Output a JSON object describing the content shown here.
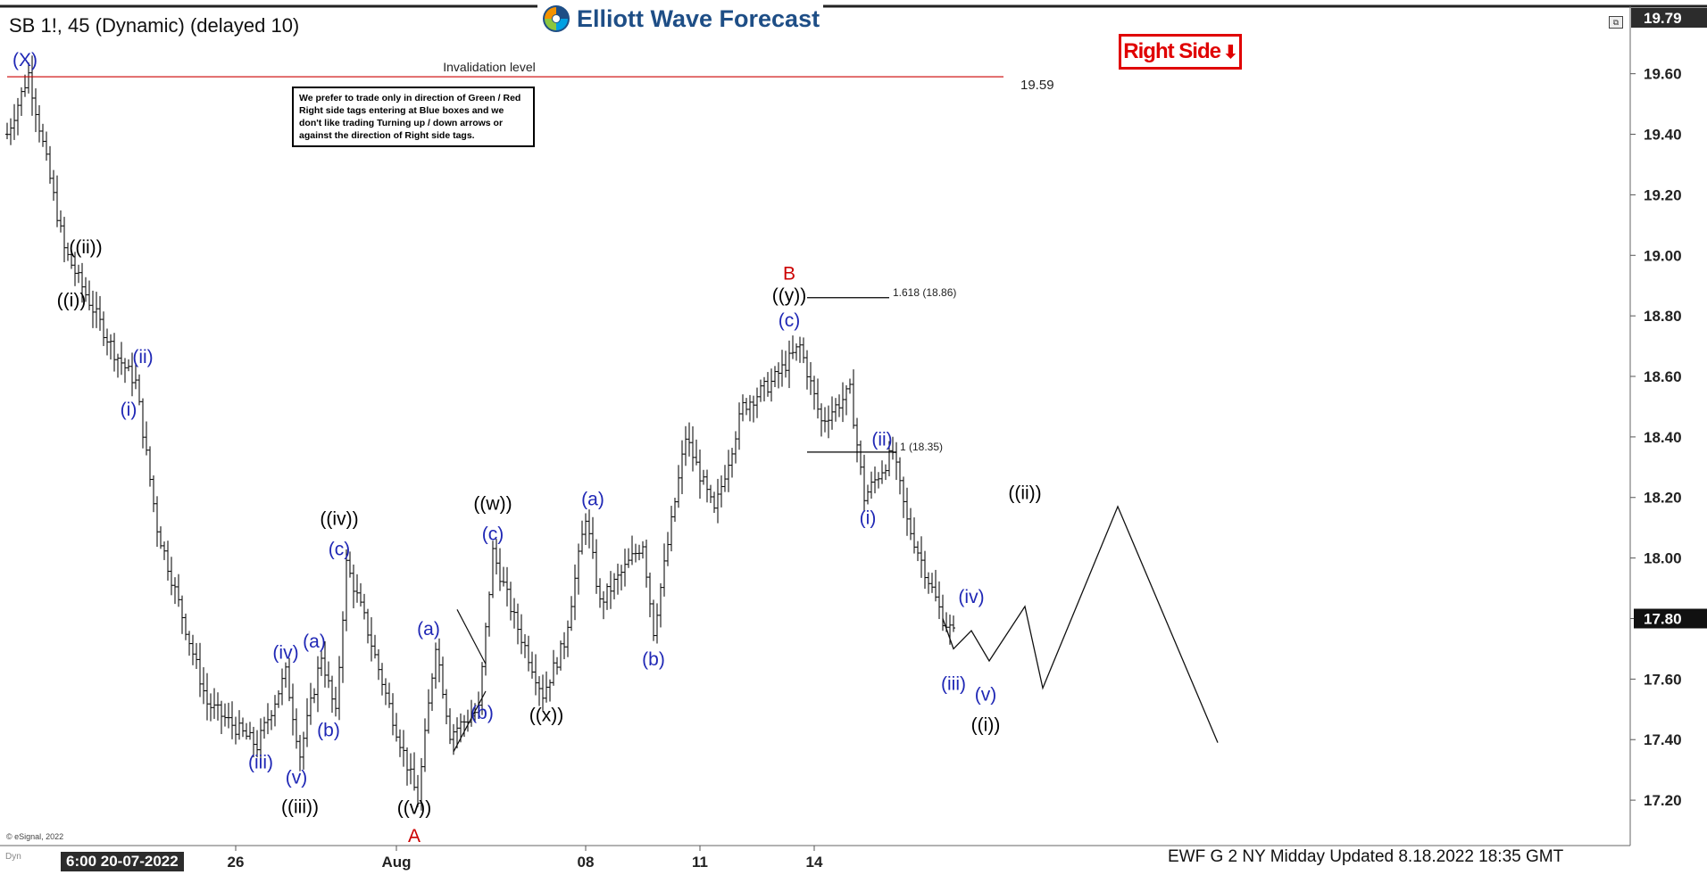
{
  "header": {
    "symbol_title": "SB 1!, 45 (Dynamic) (delayed 10)",
    "logo_text": "Elliott Wave Forecast"
  },
  "tag": {
    "label": "Right Side",
    "arrow": "⬇",
    "color": "#e00000"
  },
  "note": "We prefer to trade only in direction of Green / Red Right side tags entering at Blue boxes and we don't like trading Turning up / down arrows or against the direction of Right side tags.",
  "footer": {
    "updated": "EWF G 2 NY Midday Updated 8.18.2022 18:35 GMT",
    "copyright": "© eSignal, 2022",
    "start_date": "6:00 20-07-2022",
    "dyn": "Dyn"
  },
  "colors": {
    "black": "#000000",
    "blue": "#1f27b5",
    "red": "#cc0000",
    "bar": "#111111"
  },
  "chart_data": {
    "type": "ohlc",
    "title": "SB 1!, 45 (Dynamic) (delayed 10)",
    "y_axis": {
      "side": "right",
      "min": 17.05,
      "max": 19.82,
      "ticks": [
        17.2,
        17.4,
        17.6,
        17.8,
        18.0,
        18.2,
        18.4,
        18.6,
        18.8,
        19.0,
        19.2,
        19.4,
        19.6
      ],
      "tick_labels": [
        "17.20",
        "17.40",
        "17.60",
        "17.80",
        "18.00",
        "18.20",
        "18.40",
        "18.60",
        "18.80",
        "19.00",
        "19.20",
        "19.40",
        "19.60"
      ],
      "top_label": "19.79",
      "current_price": 17.8,
      "current_price_label": "17.80"
    },
    "x_axis": {
      "labels": [
        {
          "text": "26",
          "bar": 64
        },
        {
          "text": "Aug",
          "bar": 109
        },
        {
          "text": "08",
          "bar": 162
        },
        {
          "text": "11",
          "bar": 194
        },
        {
          "text": "14",
          "bar": 226
        }
      ],
      "total_bars_span": 310
    },
    "waypoints": [
      [
        0,
        19.4
      ],
      [
        6,
        19.6
      ],
      [
        16,
        19.02
      ],
      [
        20,
        18.92
      ],
      [
        30,
        18.68
      ],
      [
        36,
        18.58
      ],
      [
        42,
        18.1
      ],
      [
        56,
        17.52
      ],
      [
        70,
        17.38
      ],
      [
        78,
        17.62
      ],
      [
        82,
        17.35
      ],
      [
        88,
        17.68
      ],
      [
        92,
        17.48
      ],
      [
        95,
        17.98
      ],
      [
        100,
        17.8
      ],
      [
        106,
        17.55
      ],
      [
        115,
        17.2
      ],
      [
        120,
        17.72
      ],
      [
        124,
        17.42
      ],
      [
        132,
        17.5
      ],
      [
        136,
        18.02
      ],
      [
        142,
        17.8
      ],
      [
        150,
        17.55
      ],
      [
        156,
        17.72
      ],
      [
        162,
        18.14
      ],
      [
        166,
        17.85
      ],
      [
        178,
        18.05
      ],
      [
        181,
        17.76
      ],
      [
        190,
        18.4
      ],
      [
        198,
        18.15
      ],
      [
        206,
        18.5
      ],
      [
        214,
        18.58
      ],
      [
        222,
        18.7
      ],
      [
        228,
        18.45
      ],
      [
        236,
        18.55
      ],
      [
        240,
        18.2
      ],
      [
        248,
        18.35
      ],
      [
        252,
        18.12
      ],
      [
        262,
        17.8
      ],
      [
        265,
        17.75
      ]
    ],
    "projection": [
      [
        262,
        17.8
      ],
      [
        265,
        17.7
      ],
      [
        270,
        17.76
      ],
      [
        275,
        17.66
      ],
      [
        285,
        17.84
      ],
      [
        290,
        17.57
      ],
      [
        311,
        18.17
      ],
      [
        339,
        17.39
      ]
    ],
    "lines": [
      {
        "name": "invalidation",
        "price": 19.59,
        "from_bar": 0,
        "to_bar": 279,
        "color": "#cc0000",
        "label": "Invalidation level",
        "value_label": "19.59"
      },
      {
        "name": "ext-1618",
        "price": 18.86,
        "from_bar": 224,
        "to_bar": 247,
        "color": "#000000",
        "label": "1.618 (18.86)"
      },
      {
        "name": "ext-1",
        "price": 18.35,
        "from_bar": 224,
        "to_bar": 249,
        "color": "#000000",
        "label": "1 (18.35)"
      }
    ],
    "channel_lines": [
      [
        [
          125,
          17.36
        ],
        [
          134,
          17.56
        ]
      ],
      [
        [
          126,
          17.83
        ],
        [
          134,
          17.65
        ]
      ]
    ],
    "wave_labels": [
      {
        "text": "(X)",
        "bar": 5,
        "price": 19.6,
        "color": "blue",
        "dy": -14
      },
      {
        "text": "((ii))",
        "bar": 22,
        "price": 19.0,
        "color": "black",
        "dy": -8
      },
      {
        "text": "((i))",
        "bar": 18,
        "price": 18.9,
        "color": "black",
        "dy": 18
      },
      {
        "text": "(ii)",
        "bar": 38,
        "price": 18.62,
        "color": "blue",
        "dy": -14
      },
      {
        "text": "(i)",
        "bar": 34,
        "price": 18.54,
        "color": "blue",
        "dy": 18
      },
      {
        "text": "(iii)",
        "bar": 71,
        "price": 17.38,
        "color": "blue",
        "dy": 20
      },
      {
        "text": "(iv)",
        "bar": 78,
        "price": 17.63,
        "color": "blue",
        "dy": -18
      },
      {
        "text": "(v)",
        "bar": 81,
        "price": 17.3,
        "color": "blue",
        "dy": 10
      },
      {
        "text": "((iii))",
        "bar": 82,
        "price": 17.21,
        "color": "black",
        "dy": 12
      },
      {
        "text": "(a)",
        "bar": 86,
        "price": 17.68,
        "color": "blue",
        "dy": -14
      },
      {
        "text": "(b)",
        "bar": 90,
        "price": 17.48,
        "color": "blue",
        "dy": 18
      },
      {
        "text": "((iv))",
        "bar": 93,
        "price": 18.09,
        "color": "black",
        "dy": -12
      },
      {
        "text": "(c)",
        "bar": 93,
        "price": 17.99,
        "color": "blue",
        "dy": -12
      },
      {
        "text": "((v))",
        "bar": 114,
        "price": 17.2,
        "color": "black",
        "dy": 10
      },
      {
        "text": "A",
        "bar": 114,
        "price": 17.12,
        "color": "red",
        "dy": 14
      },
      {
        "text": "(a)",
        "bar": 118,
        "price": 17.72,
        "color": "blue",
        "dy": -14
      },
      {
        "text": "(b)",
        "bar": 133,
        "price": 17.52,
        "color": "blue",
        "dy": 12
      },
      {
        "text": "((w))",
        "bar": 136,
        "price": 18.14,
        "color": "black",
        "dy": -12
      },
      {
        "text": "(c)",
        "bar": 136,
        "price": 18.04,
        "color": "blue",
        "dy": -12
      },
      {
        "text": "((x))",
        "bar": 151,
        "price": 17.53,
        "color": "black",
        "dy": 18
      },
      {
        "text": "(a)",
        "bar": 164,
        "price": 18.15,
        "color": "blue",
        "dy": -14
      },
      {
        "text": "(b)",
        "bar": 181,
        "price": 17.72,
        "color": "blue",
        "dy": 20
      },
      {
        "text": "B",
        "bar": 219,
        "price": 18.9,
        "color": "red",
        "dy": -12
      },
      {
        "text": "((y))",
        "bar": 219,
        "price": 18.84,
        "color": "black",
        "dy": -8
      },
      {
        "text": "(c)",
        "bar": 219,
        "price": 18.74,
        "color": "blue",
        "dy": -14
      },
      {
        "text": "(ii)",
        "bar": 245,
        "price": 18.37,
        "color": "blue",
        "dy": -6
      },
      {
        "text": "(i)",
        "bar": 241,
        "price": 18.17,
        "color": "blue",
        "dy": 14
      },
      {
        "text": "(iii)",
        "bar": 265,
        "price": 17.64,
        "color": "blue",
        "dy": 20
      },
      {
        "text": "(iv)",
        "bar": 270,
        "price": 17.82,
        "color": "blue",
        "dy": -16
      },
      {
        "text": "(v)",
        "bar": 274,
        "price": 17.58,
        "color": "blue",
        "dy": 12
      },
      {
        "text": "((i))",
        "bar": 274,
        "price": 17.48,
        "color": "black",
        "dy": 12
      },
      {
        "text": "((ii))",
        "bar": 285,
        "price": 18.17,
        "color": "black",
        "dy": -14
      }
    ]
  }
}
